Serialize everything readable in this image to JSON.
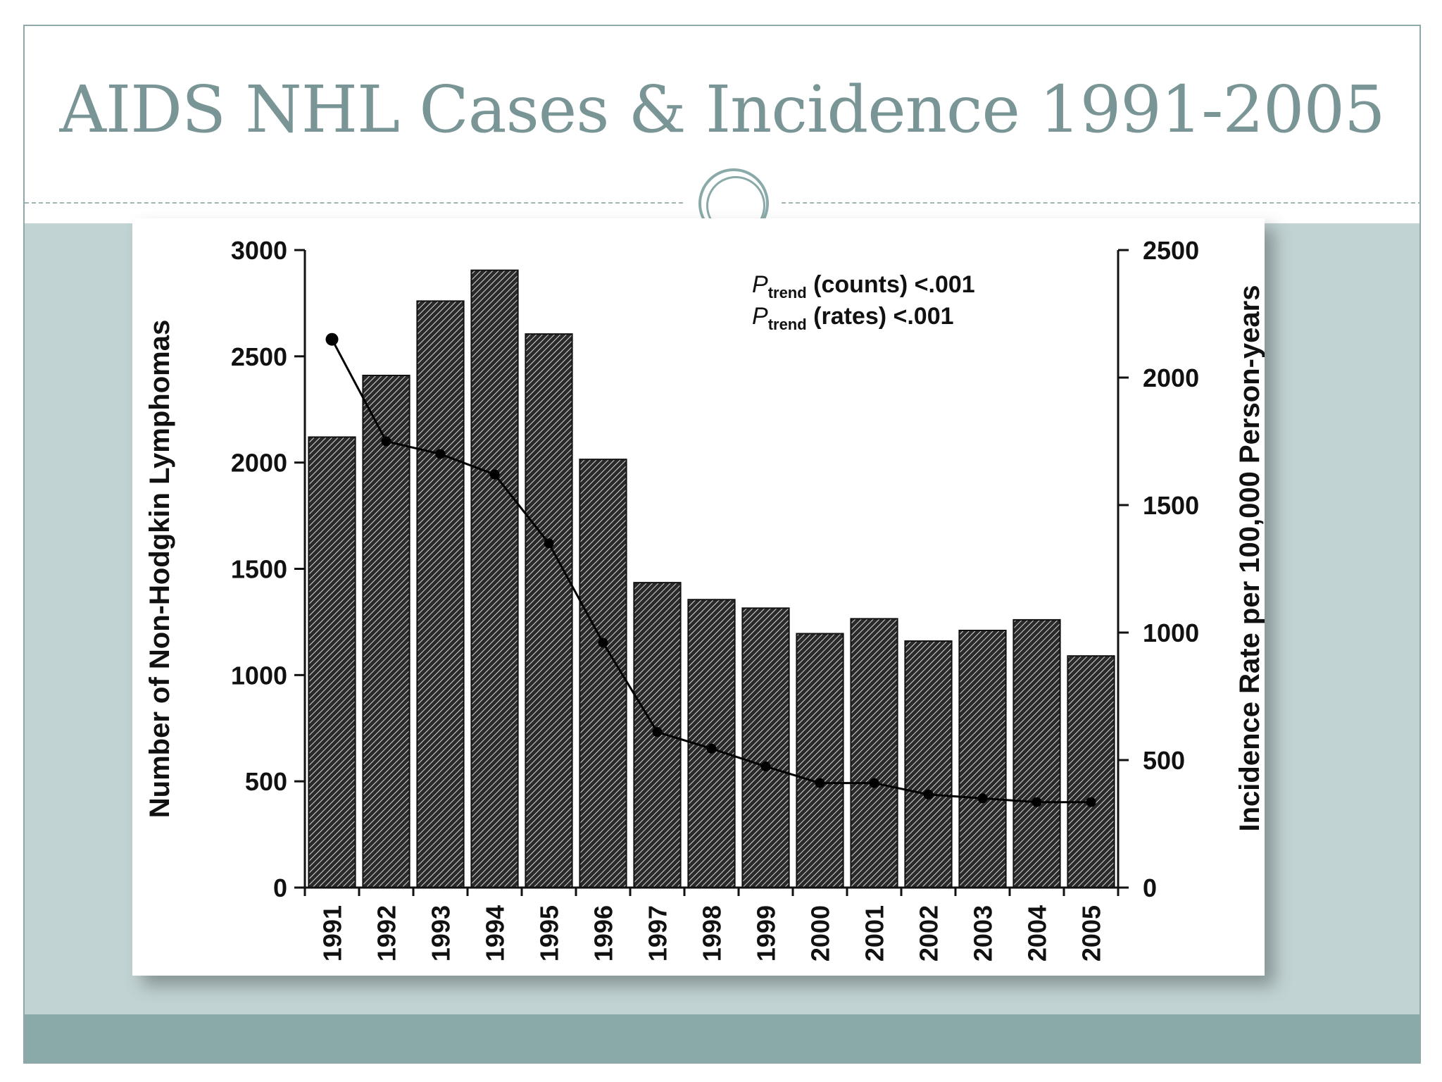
{
  "slide": {
    "title": "AIDS NHL Cases & Incidence 1991-2005"
  },
  "chart_data": {
    "type": "bar",
    "title": "",
    "categories": [
      "1991",
      "1992",
      "1993",
      "1994",
      "1995",
      "1996",
      "1997",
      "1998",
      "1999",
      "2000",
      "2001",
      "2002",
      "2003",
      "2004",
      "2005"
    ],
    "series": [
      {
        "kind": "bar",
        "axis": "left",
        "values": [
          2120,
          2410,
          2760,
          2905,
          2605,
          2015,
          1435,
          1355,
          1315,
          1195,
          1265,
          1160,
          1210,
          1260,
          1090
        ]
      },
      {
        "kind": "line",
        "axis": "right",
        "values": [
          2150,
          1750,
          1700,
          1620,
          1350,
          960,
          610,
          545,
          475,
          410,
          410,
          365,
          350,
          335,
          335
        ]
      }
    ],
    "ylabel": "Number of Non-Hodgkin Lymphomas",
    "ylabel_right": "Incidence Rate per 100,000 Person-years",
    "ylim": [
      0,
      3000
    ],
    "ylim_right": [
      0,
      2500
    ],
    "yticks": [
      0,
      500,
      1000,
      1500,
      2000,
      2500,
      3000
    ],
    "yticks_right": [
      0,
      500,
      1000,
      1500,
      2000,
      2500
    ],
    "annotations": [
      {
        "italic": "P",
        "sub": "trend",
        "text": " (counts) <.001"
      },
      {
        "italic": "P",
        "sub": "trend",
        "text": " (rates) <.001"
      }
    ],
    "bar_pattern": "diagonal-hatch",
    "colors": {
      "bar_fill": "#2a2a2a",
      "hatch": "#dcdcdc",
      "line": "#000000"
    },
    "grid": false,
    "legend": "none"
  }
}
